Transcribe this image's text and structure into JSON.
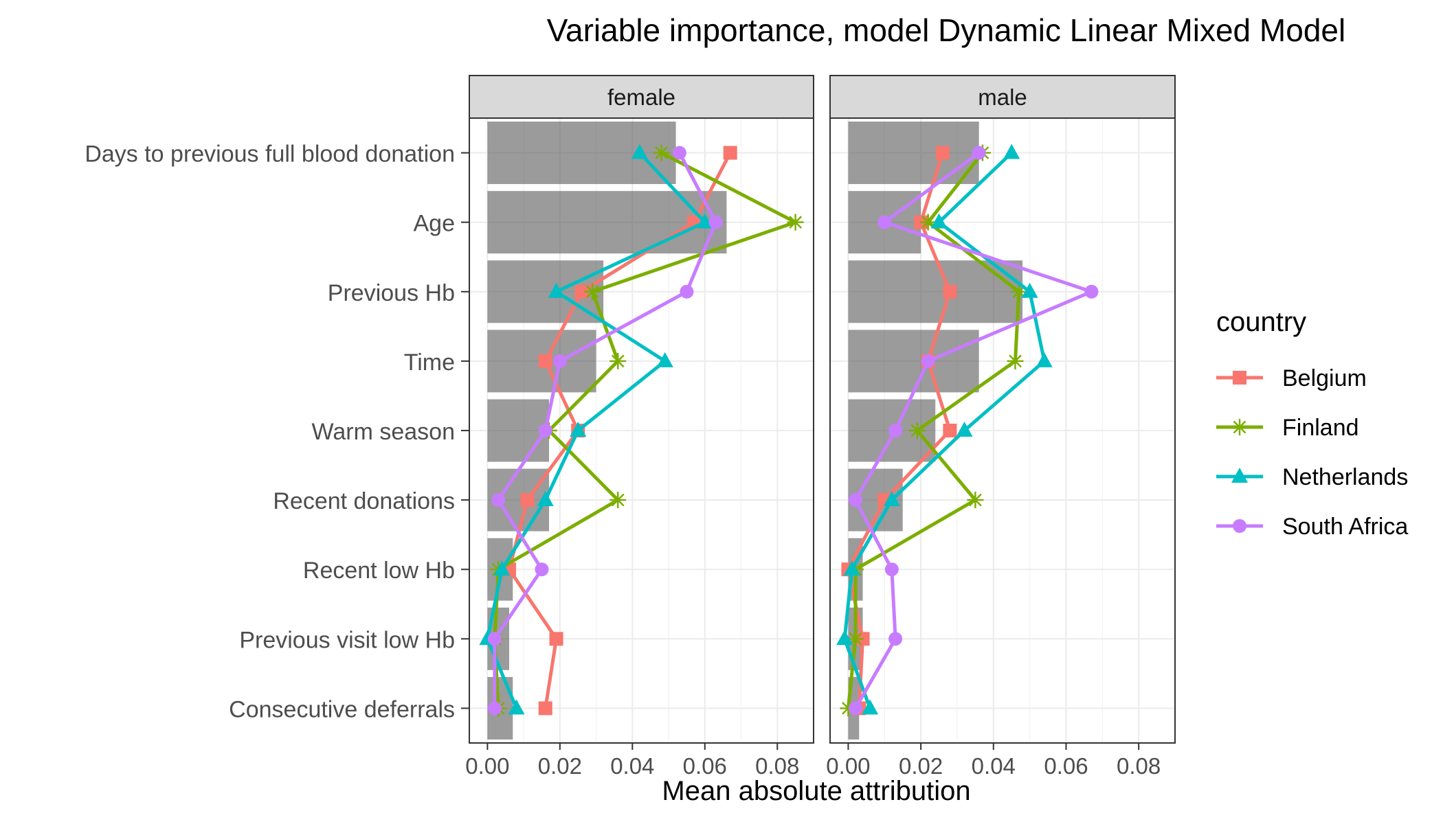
{
  "chart_data": {
    "type": "bar",
    "title": "Variable importance, model Dynamic Linear Mixed Model",
    "xlabel": "Mean absolute attribution",
    "ylabel": "",
    "xlim": [
      -0.005,
      0.09
    ],
    "xticks": [
      0,
      0.02,
      0.04,
      0.06,
      0.08
    ],
    "xtick_labels": [
      "0.00",
      "0.02",
      "0.04",
      "0.06",
      "0.08"
    ],
    "grid": true,
    "legend": {
      "title": "country",
      "position": "right",
      "items": [
        {
          "name": "Belgium",
          "color": "#F8766D",
          "marker": "square"
        },
        {
          "name": "Finland",
          "color": "#7CAE00",
          "marker": "asterisk"
        },
        {
          "name": "Netherlands",
          "color": "#00BFC4",
          "marker": "triangle"
        },
        {
          "name": "South Africa",
          "color": "#C77CFF",
          "marker": "circle"
        }
      ]
    },
    "categories": [
      "Days to previous full blood donation",
      "Age",
      "Previous Hb",
      "Time",
      "Warm season",
      "Recent donations",
      "Recent low Hb",
      "Previous visit low Hb",
      "Consecutive deferrals"
    ],
    "panels": [
      {
        "name": "female",
        "bars": [
          0.052,
          0.066,
          0.032,
          0.03,
          0.017,
          0.017,
          0.007,
          0.006,
          0.007
        ],
        "series": [
          {
            "name": "Belgium",
            "values": [
              0.067,
              0.057,
              0.026,
              0.016,
              0.025,
              0.011,
              0.006,
              0.019,
              0.016
            ]
          },
          {
            "name": "Finland",
            "values": [
              0.048,
              0.085,
              0.029,
              0.036,
              0.017,
              0.036,
              0.003,
              0.002,
              0.003
            ]
          },
          {
            "name": "Netherlands",
            "values": [
              0.042,
              0.06,
              0.019,
              0.049,
              0.025,
              0.016,
              0.004,
              0.0,
              0.008
            ]
          },
          {
            "name": "South Africa",
            "values": [
              0.053,
              0.063,
              0.055,
              0.02,
              0.016,
              0.003,
              0.015,
              0.002,
              0.002
            ]
          }
        ]
      },
      {
        "name": "male",
        "bars": [
          0.036,
          0.02,
          0.048,
          0.036,
          0.024,
          0.015,
          0.004,
          0.004,
          0.003
        ],
        "series": [
          {
            "name": "Belgium",
            "values": [
              0.026,
              0.02,
              0.028,
              0.022,
              0.028,
              0.01,
              0.0,
              0.004,
              0.003
            ]
          },
          {
            "name": "Finland",
            "values": [
              0.037,
              0.022,
              0.047,
              0.046,
              0.019,
              0.035,
              0.002,
              0.002,
              0.0
            ]
          },
          {
            "name": "Netherlands",
            "values": [
              0.045,
              0.025,
              0.05,
              0.054,
              0.032,
              0.012,
              0.001,
              -0.001,
              0.006
            ]
          },
          {
            "name": "South Africa",
            "values": [
              0.036,
              0.01,
              0.067,
              0.022,
              0.013,
              0.002,
              0.012,
              0.013,
              0.002
            ]
          }
        ]
      }
    ]
  }
}
